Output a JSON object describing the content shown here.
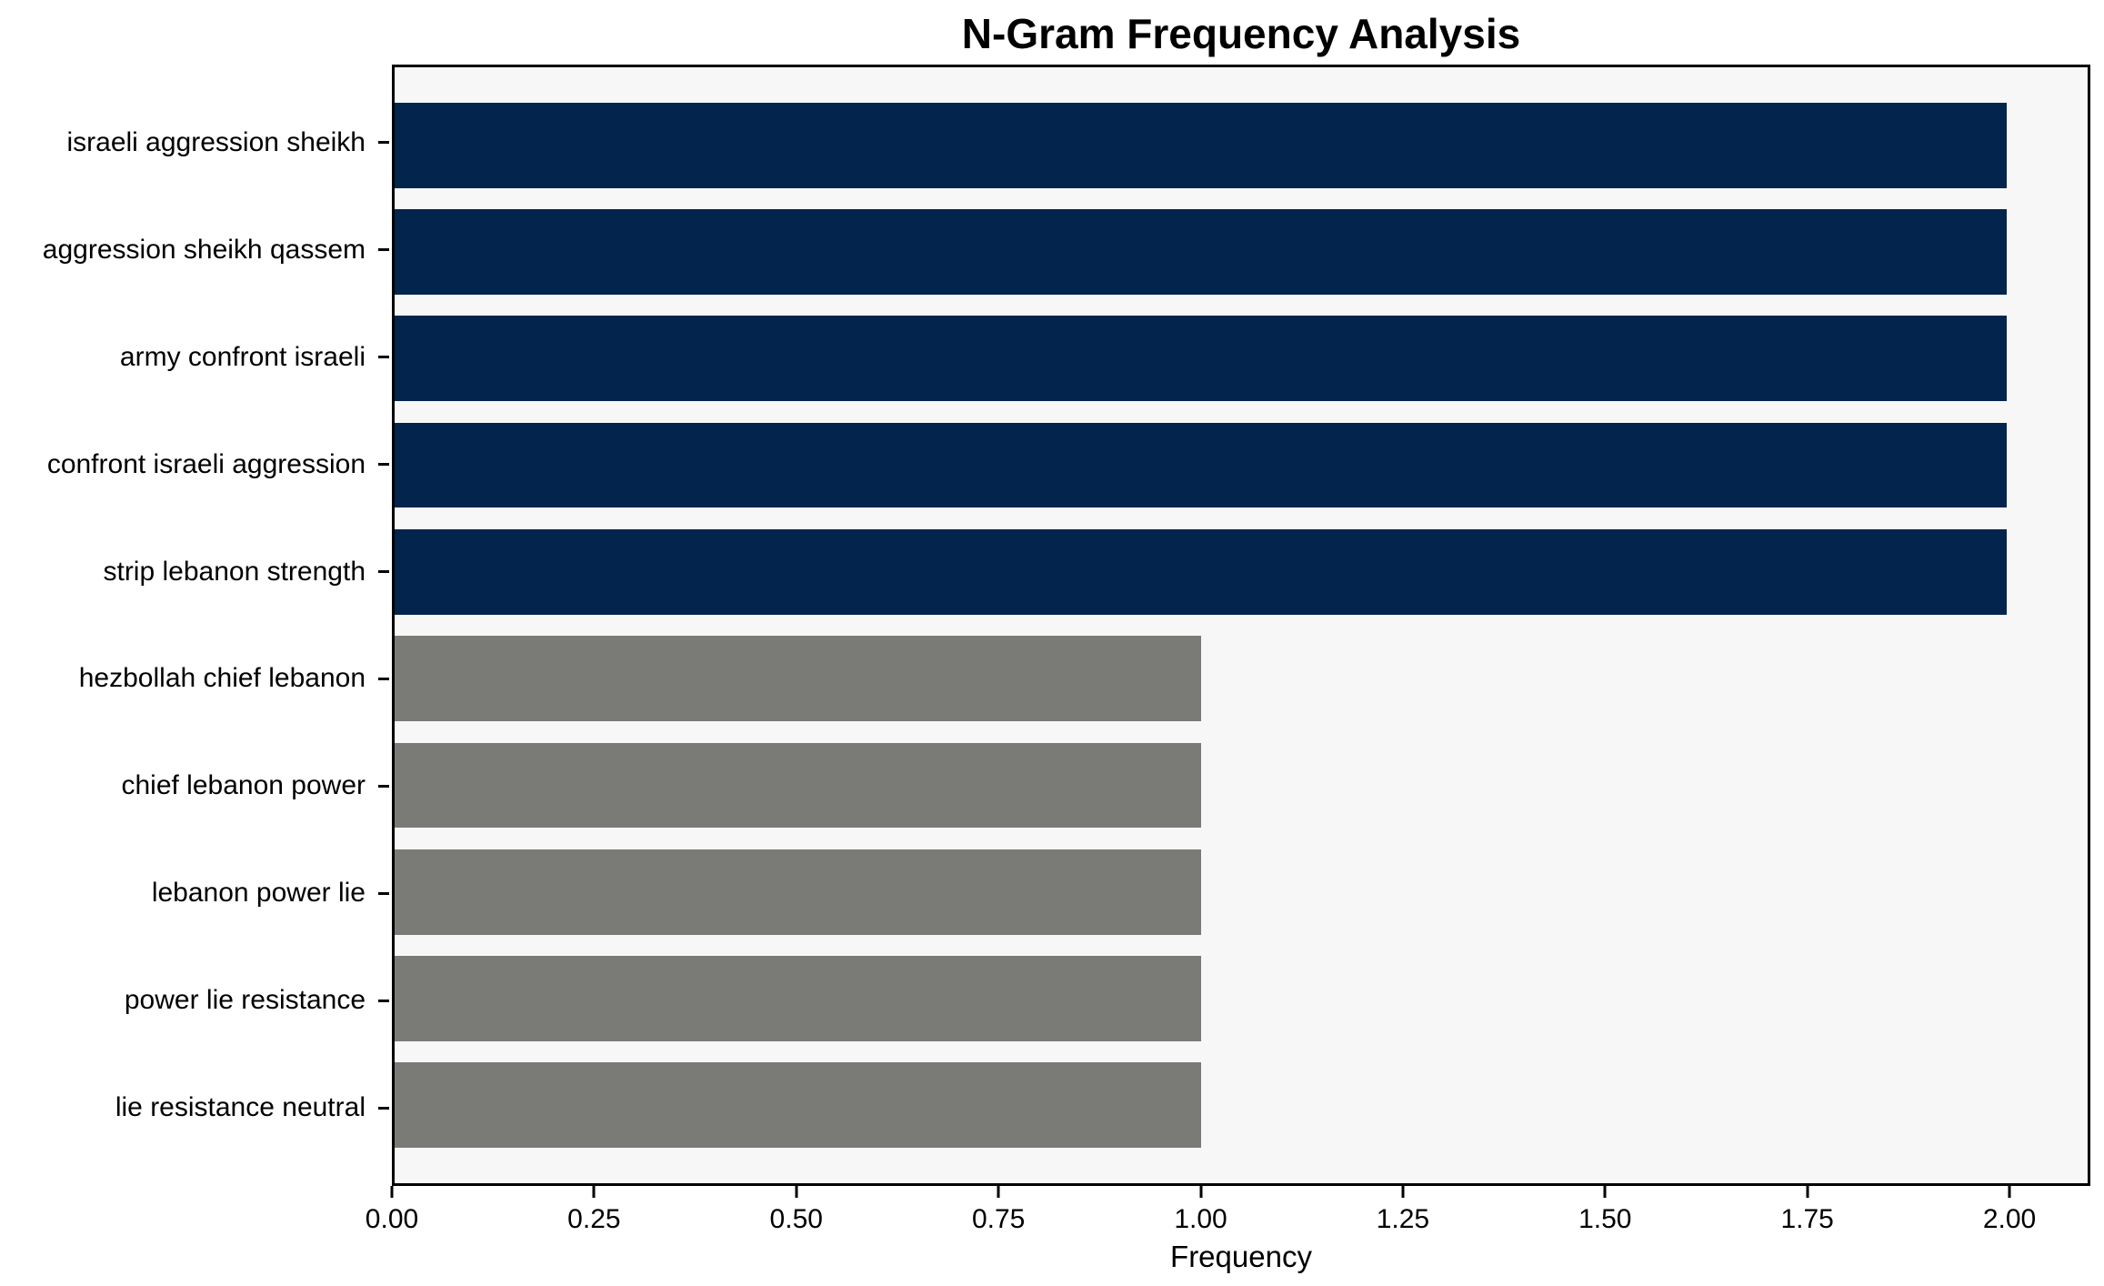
{
  "chart_data": {
    "type": "bar",
    "orientation": "horizontal",
    "title": "N-Gram Frequency Analysis",
    "xlabel": "Frequency",
    "ylabel": "",
    "categories": [
      "israeli aggression sheikh",
      "aggression sheikh qassem",
      "army confront israeli",
      "confront israeli aggression",
      "strip lebanon strength",
      "hezbollah chief lebanon",
      "chief lebanon power",
      "lebanon power lie",
      "power lie resistance",
      "lie resistance neutral"
    ],
    "values": [
      2,
      2,
      2,
      2,
      2,
      1,
      1,
      1,
      1,
      1
    ],
    "bar_colors": [
      "#02244d",
      "#02244d",
      "#02244d",
      "#02244d",
      "#02244d",
      "#7a7a77",
      "#7a7a77",
      "#7a7a77",
      "#7a7a77",
      "#7a7a77"
    ],
    "xlim": [
      0,
      2.1
    ],
    "xtick_values": [
      0.0,
      0.25,
      0.5,
      0.75,
      1.0,
      1.25,
      1.5,
      1.75,
      2.0
    ],
    "xtick_labels": [
      "0.00",
      "0.25",
      "0.50",
      "0.75",
      "1.00",
      "1.25",
      "1.50",
      "1.75",
      "2.00"
    ],
    "grid": false,
    "legend": false,
    "colors": {
      "highlight_bar": "#02244d",
      "normal_bar": "#7a7a77",
      "plot_background": "#f7f7f7",
      "figure_background": "#ffffff",
      "text": "#000000"
    }
  }
}
